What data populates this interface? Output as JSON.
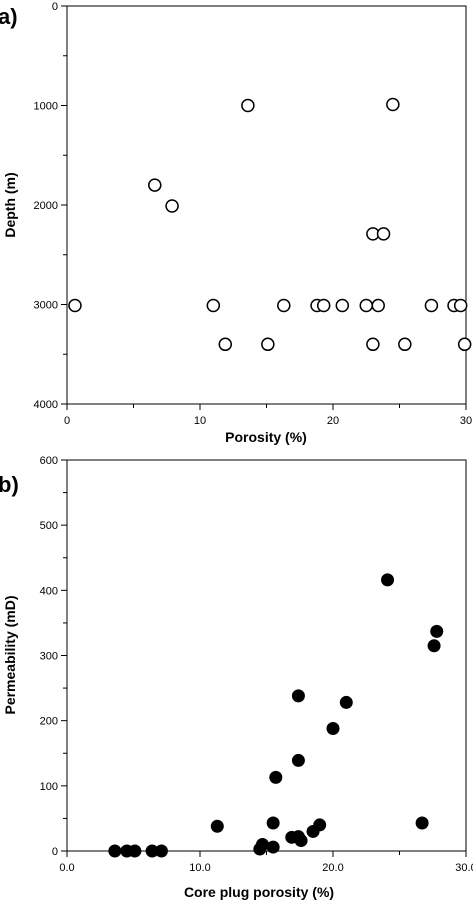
{
  "chart_data": [
    {
      "type": "scatter",
      "panel_label": "a)",
      "xlabel": "Porosity (%)",
      "ylabel": "Depth (m)",
      "xlim": [
        0,
        30
      ],
      "ylim": [
        0,
        4000
      ],
      "y_inverted": true,
      "x_tick_labels": [
        "0",
        "10",
        "20",
        "30"
      ],
      "y_tick_labels": [
        "0",
        "1000",
        "2000",
        "3000",
        "4000"
      ],
      "grid": false,
      "legend": "none",
      "marker": "open-circle",
      "points": [
        {
          "x": 0.6,
          "y": 3010
        },
        {
          "x": 6.6,
          "y": 1800
        },
        {
          "x": 7.9,
          "y": 2010
        },
        {
          "x": 11.0,
          "y": 3010
        },
        {
          "x": 11.9,
          "y": 3400
        },
        {
          "x": 13.6,
          "y": 1000
        },
        {
          "x": 15.1,
          "y": 3400
        },
        {
          "x": 16.3,
          "y": 3010
        },
        {
          "x": 18.8,
          "y": 3010
        },
        {
          "x": 19.3,
          "y": 3010
        },
        {
          "x": 20.7,
          "y": 3010
        },
        {
          "x": 22.5,
          "y": 3010
        },
        {
          "x": 23.0,
          "y": 2290
        },
        {
          "x": 23.0,
          "y": 3400
        },
        {
          "x": 23.4,
          "y": 3010
        },
        {
          "x": 23.8,
          "y": 2290
        },
        {
          "x": 24.5,
          "y": 990
        },
        {
          "x": 25.4,
          "y": 3400
        },
        {
          "x": 27.4,
          "y": 3010
        },
        {
          "x": 29.1,
          "y": 3010
        },
        {
          "x": 29.6,
          "y": 3010
        },
        {
          "x": 29.9,
          "y": 3400
        }
      ]
    },
    {
      "type": "scatter",
      "panel_label": "b)",
      "xlabel": "Core plug porosity (%)",
      "ylabel": "Permeability (mD)",
      "xlim": [
        0,
        30
      ],
      "ylim": [
        0,
        600
      ],
      "y_inverted": false,
      "x_tick_labels": [
        "0.0",
        "10.0",
        "20.0",
        "30.0"
      ],
      "y_tick_labels": [
        "0",
        "100",
        "200",
        "300",
        "400",
        "500",
        "600"
      ],
      "grid": false,
      "legend": "none",
      "marker": "filled-circle",
      "points": [
        {
          "x": 3.6,
          "y": 0
        },
        {
          "x": 4.5,
          "y": 0
        },
        {
          "x": 5.1,
          "y": 0
        },
        {
          "x": 6.4,
          "y": 0
        },
        {
          "x": 7.1,
          "y": 0
        },
        {
          "x": 11.3,
          "y": 38
        },
        {
          "x": 14.5,
          "y": 3
        },
        {
          "x": 14.7,
          "y": 10
        },
        {
          "x": 15.5,
          "y": 6
        },
        {
          "x": 15.5,
          "y": 43
        },
        {
          "x": 15.7,
          "y": 113
        },
        {
          "x": 16.9,
          "y": 21
        },
        {
          "x": 17.4,
          "y": 22
        },
        {
          "x": 17.6,
          "y": 16
        },
        {
          "x": 17.4,
          "y": 139
        },
        {
          "x": 17.4,
          "y": 238
        },
        {
          "x": 18.5,
          "y": 30
        },
        {
          "x": 19.0,
          "y": 40
        },
        {
          "x": 20.0,
          "y": 188
        },
        {
          "x": 21.0,
          "y": 228
        },
        {
          "x": 24.1,
          "y": 416
        },
        {
          "x": 26.7,
          "y": 43
        },
        {
          "x": 27.6,
          "y": 315
        },
        {
          "x": 27.8,
          "y": 337
        }
      ]
    }
  ]
}
